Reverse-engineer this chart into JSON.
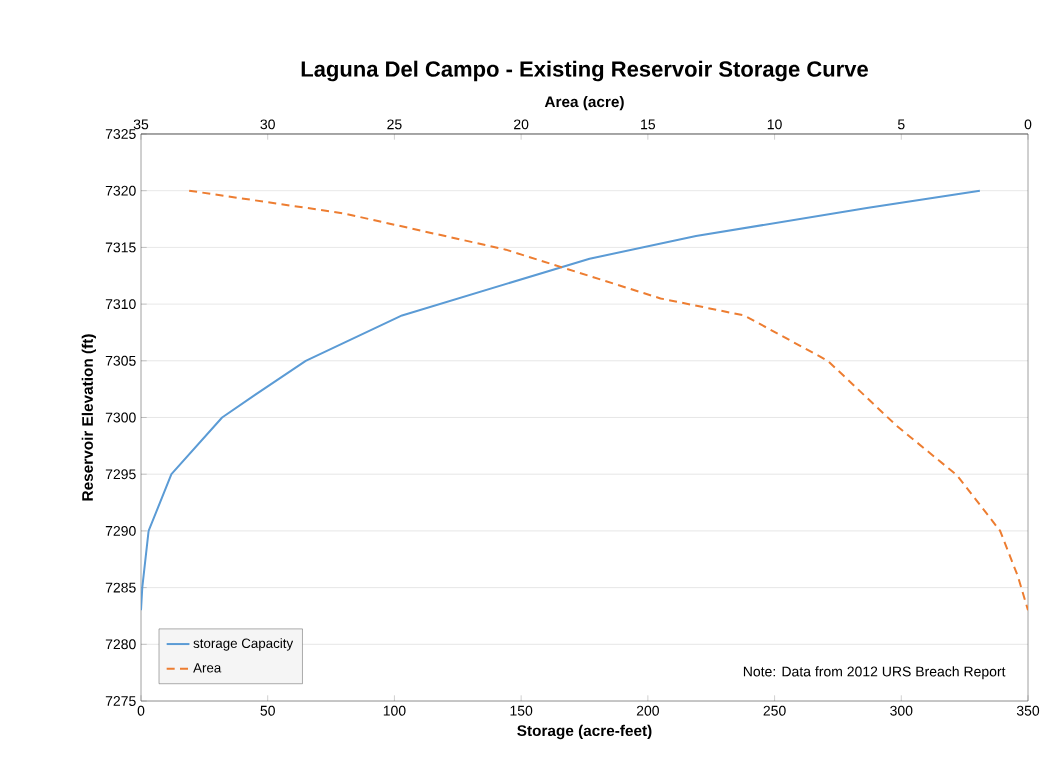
{
  "chart_data": {
    "type": "line",
    "title": "Laguna Del Campo - Existing Reservoir Storage Curve",
    "xlabel": "Storage (acre-feet)",
    "x2label": "Area (acre)",
    "ylabel": "Reservoir Elevation (ft)",
    "xlim": [
      0,
      350
    ],
    "xticks": [
      0,
      50,
      100,
      150,
      200,
      250,
      300,
      350
    ],
    "x2lim": [
      35,
      0
    ],
    "x2ticks": [
      35,
      30,
      25,
      20,
      15,
      10,
      5,
      0
    ],
    "ylim": [
      7275,
      7325
    ],
    "yticks": [
      7275,
      7280,
      7285,
      7290,
      7295,
      7300,
      7305,
      7310,
      7315,
      7320,
      7325
    ],
    "grid": "y",
    "legend": "bottom left",
    "marker": "none",
    "series": [
      {
        "name": "storage Capacity",
        "color": "#5b9bd5",
        "line_style": "solid",
        "x": [
          0,
          0.5,
          3,
          12,
          32,
          45,
          65,
          103,
          177,
          219,
          287,
          331
        ],
        "values": [
          7283,
          7285,
          7290,
          7295,
          7300,
          7302,
          7305,
          7309,
          7314,
          7316,
          7318.5,
          7320
        ]
      },
      {
        "name": "Area",
        "color": "#ed7d31",
        "line_style": "dashed",
        "axis": "x2",
        "x": [
          33.1,
          27,
          20.6,
          14.5,
          11.2,
          7.9,
          5.2,
          2.8,
          1.1,
          0.4,
          0
        ],
        "values": [
          7320,
          7318,
          7314.8,
          7310.5,
          7309,
          7305,
          7299.3,
          7294.9,
          7290,
          7286,
          7283
        ]
      }
    ],
    "annotations": [
      "Note: Data from 2012 URS Breach Report"
    ]
  }
}
